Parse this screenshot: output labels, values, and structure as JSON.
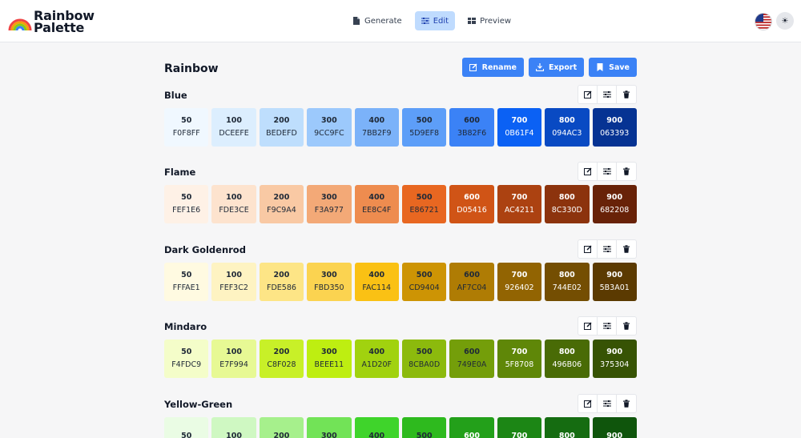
{
  "app": {
    "name_line1": "Rainbow",
    "name_line2": "Palette"
  },
  "nav": {
    "tabs": [
      {
        "label": "Generate",
        "icon": "document-icon",
        "active": false
      },
      {
        "label": "Edit",
        "icon": "sliders-icon",
        "active": true
      },
      {
        "label": "Preview",
        "icon": "grid-icon",
        "active": false
      }
    ]
  },
  "header": {
    "language": "us-flag-icon",
    "theme_icon": "☀"
  },
  "page": {
    "title": "Rainbow",
    "actions": {
      "rename": "Rename",
      "export": "Export",
      "save": "Save"
    }
  },
  "palettes": [
    {
      "name": "Blue",
      "swatches": [
        {
          "shade": "50",
          "hex": "F0F8FF",
          "bg": "#F0F8FF",
          "fg": "#1f2937"
        },
        {
          "shade": "100",
          "hex": "DCEEFE",
          "bg": "#DCEEFE",
          "fg": "#1f2937"
        },
        {
          "shade": "200",
          "hex": "BEDEFD",
          "bg": "#BEDEFD",
          "fg": "#1f2937"
        },
        {
          "shade": "300",
          "hex": "9CC9FC",
          "bg": "#9CC9FC",
          "fg": "#1f2937"
        },
        {
          "shade": "400",
          "hex": "7BB2F9",
          "bg": "#7BB2F9",
          "fg": "#1f2937"
        },
        {
          "shade": "500",
          "hex": "5D9EF8",
          "bg": "#5D9EF8",
          "fg": "#1f2937"
        },
        {
          "shade": "600",
          "hex": "3B82F6",
          "bg": "#3B82F6",
          "fg": "#1f2937"
        },
        {
          "shade": "700",
          "hex": "0B61F4",
          "bg": "#0B61F4",
          "fg": "#ffffff"
        },
        {
          "shade": "800",
          "hex": "094AC3",
          "bg": "#094AC3",
          "fg": "#ffffff"
        },
        {
          "shade": "900",
          "hex": "063393",
          "bg": "#063393",
          "fg": "#ffffff"
        }
      ]
    },
    {
      "name": "Flame",
      "swatches": [
        {
          "shade": "50",
          "hex": "FEF1E6",
          "bg": "#FEF1E6",
          "fg": "#1f2937"
        },
        {
          "shade": "100",
          "hex": "FDE3CE",
          "bg": "#FDE3CE",
          "fg": "#1f2937"
        },
        {
          "shade": "200",
          "hex": "F9C9A4",
          "bg": "#F9C9A4",
          "fg": "#1f2937"
        },
        {
          "shade": "300",
          "hex": "F3A977",
          "bg": "#F3A977",
          "fg": "#1f2937"
        },
        {
          "shade": "400",
          "hex": "EE8C4F",
          "bg": "#EE8C4F",
          "fg": "#1f2937"
        },
        {
          "shade": "500",
          "hex": "E86721",
          "bg": "#E86721",
          "fg": "#1f2937"
        },
        {
          "shade": "600",
          "hex": "D05416",
          "bg": "#D05416",
          "fg": "#ffffff"
        },
        {
          "shade": "700",
          "hex": "AC4211",
          "bg": "#AC4211",
          "fg": "#ffffff"
        },
        {
          "shade": "800",
          "hex": "8C330D",
          "bg": "#8C330D",
          "fg": "#ffffff"
        },
        {
          "shade": "900",
          "hex": "682208",
          "bg": "#682208",
          "fg": "#ffffff"
        }
      ]
    },
    {
      "name": "Dark Goldenrod",
      "swatches": [
        {
          "shade": "50",
          "hex": "FFFAE1",
          "bg": "#FFFAE1",
          "fg": "#1f2937"
        },
        {
          "shade": "100",
          "hex": "FEF3C2",
          "bg": "#FEF3C2",
          "fg": "#1f2937"
        },
        {
          "shade": "200",
          "hex": "FDE586",
          "bg": "#FDE586",
          "fg": "#1f2937"
        },
        {
          "shade": "300",
          "hex": "FBD350",
          "bg": "#FBD350",
          "fg": "#1f2937"
        },
        {
          "shade": "400",
          "hex": "FAC114",
          "bg": "#FAC114",
          "fg": "#1f2937"
        },
        {
          "shade": "500",
          "hex": "CD9404",
          "bg": "#CD9404",
          "fg": "#1f2937"
        },
        {
          "shade": "600",
          "hex": "AF7C04",
          "bg": "#AF7C04",
          "fg": "#1f2937"
        },
        {
          "shade": "700",
          "hex": "926402",
          "bg": "#926402",
          "fg": "#ffffff"
        },
        {
          "shade": "800",
          "hex": "744E02",
          "bg": "#744E02",
          "fg": "#ffffff"
        },
        {
          "shade": "900",
          "hex": "5B3A01",
          "bg": "#5B3A01",
          "fg": "#ffffff"
        }
      ]
    },
    {
      "name": "Mindaro",
      "swatches": [
        {
          "shade": "50",
          "hex": "F4FDC9",
          "bg": "#F4FDC9",
          "fg": "#1f2937"
        },
        {
          "shade": "100",
          "hex": "E7F994",
          "bg": "#E7F994",
          "fg": "#1f2937"
        },
        {
          "shade": "200",
          "hex": "C8F028",
          "bg": "#C8F028",
          "fg": "#1f2937"
        },
        {
          "shade": "300",
          "hex": "BEEE11",
          "bg": "#BEEE11",
          "fg": "#1f2937"
        },
        {
          "shade": "400",
          "hex": "A1D20F",
          "bg": "#A1D20F",
          "fg": "#1f2937"
        },
        {
          "shade": "500",
          "hex": "8CBA0D",
          "bg": "#8CBA0D",
          "fg": "#1f2937"
        },
        {
          "shade": "600",
          "hex": "749E0A",
          "bg": "#749E0A",
          "fg": "#1f2937"
        },
        {
          "shade": "700",
          "hex": "5F8708",
          "bg": "#5F8708",
          "fg": "#ffffff"
        },
        {
          "shade": "800",
          "hex": "496B06",
          "bg": "#496B06",
          "fg": "#ffffff"
        },
        {
          "shade": "900",
          "hex": "375304",
          "bg": "#375304",
          "fg": "#ffffff"
        }
      ]
    },
    {
      "name": "Yellow-Green",
      "swatches": [
        {
          "shade": "50",
          "bg": "#EAFCE4",
          "fg": "#1f2937"
        },
        {
          "shade": "100",
          "bg": "#CFF8C2",
          "fg": "#1f2937"
        },
        {
          "shade": "200",
          "bg": "#A6F08C",
          "fg": "#1f2937"
        },
        {
          "shade": "300",
          "bg": "#72E357",
          "fg": "#1f2937"
        },
        {
          "shade": "400",
          "bg": "#3FD42B",
          "fg": "#1f2937"
        },
        {
          "shade": "500",
          "bg": "#2EBA1E",
          "fg": "#1f2937"
        },
        {
          "shade": "600",
          "bg": "#23A01A",
          "fg": "#ffffff"
        },
        {
          "shade": "700",
          "bg": "#1C8615",
          "fg": "#ffffff"
        },
        {
          "shade": "800",
          "bg": "#156C11",
          "fg": "#ffffff"
        },
        {
          "shade": "900",
          "bg": "#0F550C",
          "fg": "#ffffff"
        }
      ]
    }
  ]
}
